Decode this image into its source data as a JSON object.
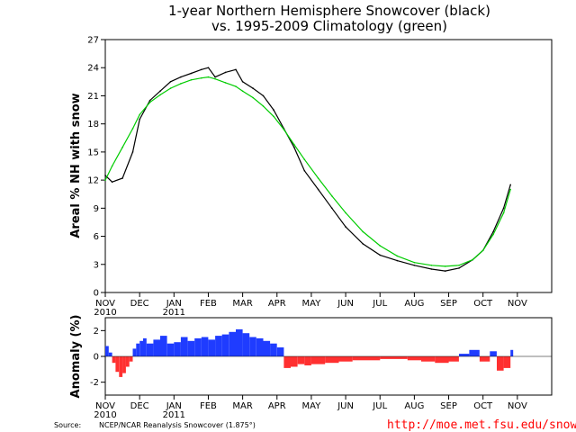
{
  "colors": {
    "observed": "#000000",
    "climatology": "#00cc00",
    "positive": "#1f3cff",
    "negative": "#ff3030"
  },
  "chart_data": [
    {
      "type": "line",
      "title": "1-year Northern Hemisphere Snowcover (black)",
      "subtitle": "vs. 1995-2009 Climatology (green)",
      "ylabel": "Areal % NH with snow",
      "ylim": [
        0,
        27
      ],
      "yticks": [
        0,
        3,
        6,
        9,
        12,
        15,
        18,
        21,
        24,
        27
      ],
      "xlim": [
        0,
        13
      ],
      "month_ticks": [
        "NOV",
        "DEC",
        "JAN",
        "FEB",
        "MAR",
        "APR",
        "MAY",
        "JUN",
        "JUL",
        "AUG",
        "SEP",
        "OCT",
        "NOV"
      ],
      "year_labels": [
        {
          "month_index": 0,
          "label": "2010"
        },
        {
          "month_index": 2,
          "label": "2011"
        }
      ],
      "grid": false,
      "series": [
        {
          "name": "observed",
          "x": [
            0.0,
            0.2,
            0.5,
            0.8,
            1.0,
            1.3,
            1.6,
            1.9,
            2.2,
            2.5,
            2.8,
            3.0,
            3.2,
            3.5,
            3.8,
            4.0,
            4.3,
            4.6,
            4.9,
            5.2,
            5.5,
            5.8,
            6.2,
            6.6,
            7.0,
            7.5,
            8.0,
            8.5,
            9.0,
            9.5,
            9.9,
            10.3,
            10.7,
            11.0,
            11.3,
            11.6,
            11.8
          ],
          "values": [
            12.5,
            11.8,
            12.2,
            15.0,
            18.5,
            20.5,
            21.5,
            22.5,
            23.0,
            23.4,
            23.8,
            24.0,
            23.0,
            23.5,
            23.8,
            22.5,
            21.8,
            21.0,
            19.5,
            17.5,
            15.5,
            13.0,
            11.0,
            9.0,
            7.0,
            5.2,
            4.0,
            3.4,
            2.9,
            2.5,
            2.3,
            2.6,
            3.5,
            4.5,
            6.5,
            9.0,
            11.5
          ]
        },
        {
          "name": "climatology",
          "x": [
            0.0,
            0.2,
            0.5,
            0.8,
            1.0,
            1.3,
            1.6,
            1.9,
            2.2,
            2.5,
            2.8,
            3.0,
            3.2,
            3.5,
            3.8,
            4.0,
            4.3,
            4.6,
            4.9,
            5.2,
            5.5,
            5.8,
            6.2,
            6.6,
            7.0,
            7.5,
            8.0,
            8.5,
            9.0,
            9.5,
            9.9,
            10.3,
            10.7,
            11.0,
            11.3,
            11.6,
            11.8
          ],
          "values": [
            12.0,
            13.5,
            15.5,
            17.5,
            19.0,
            20.3,
            21.1,
            21.8,
            22.3,
            22.7,
            22.9,
            23.0,
            22.8,
            22.4,
            22.0,
            21.5,
            20.8,
            19.9,
            18.8,
            17.4,
            15.8,
            14.2,
            12.2,
            10.3,
            8.5,
            6.5,
            5.0,
            3.9,
            3.2,
            2.9,
            2.8,
            2.9,
            3.5,
            4.5,
            6.2,
            8.5,
            11.0
          ]
        }
      ]
    },
    {
      "type": "bar",
      "ylabel": "Anomaly (%)",
      "ylim": [
        -3,
        3
      ],
      "yticks": [
        -2,
        0,
        2
      ],
      "xlim": [
        0,
        13
      ],
      "month_ticks": [
        "NOV",
        "DEC",
        "JAN",
        "FEB",
        "MAR",
        "APR",
        "MAY",
        "JUN",
        "JUL",
        "AUG",
        "SEP",
        "OCT",
        "NOV"
      ],
      "year_labels": [
        {
          "month_index": 0,
          "label": "2010"
        },
        {
          "month_index": 2,
          "label": "2011"
        }
      ],
      "series": [
        {
          "name": "anomaly",
          "x": [
            0.0,
            0.1,
            0.2,
            0.3,
            0.4,
            0.5,
            0.6,
            0.7,
            0.8,
            0.9,
            1.0,
            1.1,
            1.2,
            1.4,
            1.6,
            1.8,
            2.0,
            2.2,
            2.4,
            2.6,
            2.8,
            3.0,
            3.2,
            3.4,
            3.6,
            3.8,
            4.0,
            4.2,
            4.4,
            4.6,
            4.8,
            5.0,
            5.2,
            5.4,
            5.6,
            5.8,
            6.0,
            6.4,
            6.8,
            7.2,
            7.6,
            8.0,
            8.4,
            8.8,
            9.2,
            9.6,
            10.0,
            10.3,
            10.6,
            10.9,
            11.2,
            11.4,
            11.6,
            11.8
          ],
          "values": [
            0.8,
            0.3,
            -0.5,
            -1.2,
            -1.6,
            -1.3,
            -0.8,
            -0.4,
            0.6,
            1.0,
            1.2,
            1.4,
            1.0,
            1.3,
            1.6,
            1.0,
            1.1,
            1.5,
            1.2,
            1.4,
            1.5,
            1.3,
            1.6,
            1.7,
            1.9,
            2.1,
            1.8,
            1.5,
            1.4,
            1.2,
            1.0,
            0.7,
            -0.9,
            -0.8,
            -0.6,
            -0.7,
            -0.6,
            -0.5,
            -0.4,
            -0.3,
            -0.3,
            -0.2,
            -0.2,
            -0.3,
            -0.4,
            -0.5,
            -0.4,
            0.2,
            0.5,
            -0.4,
            0.4,
            -1.1,
            -0.9,
            0.5
          ]
        }
      ]
    }
  ],
  "footer": {
    "source_label": "Source:",
    "source_text": "NCEP/NCAR Reanalysis Snowcover (1.875°)",
    "url": "http://moe.met.fsu.edu/snow"
  }
}
